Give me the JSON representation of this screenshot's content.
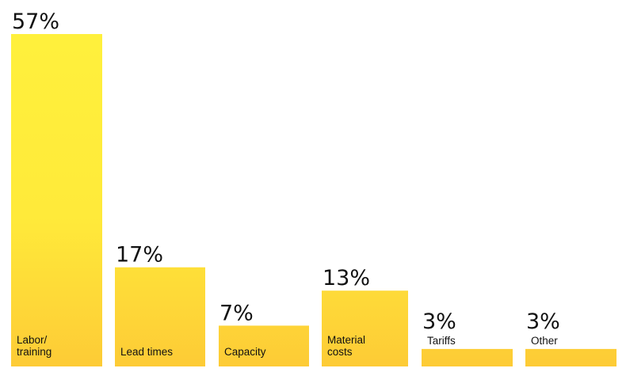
{
  "chart_data": {
    "type": "bar",
    "categories": [
      "Labor/ training",
      "Lead times",
      "Capacity",
      "Material costs",
      "Tariffs",
      "Other"
    ],
    "category_lines": [
      [
        "Labor/",
        "training"
      ],
      [
        "Lead times"
      ],
      [
        "Capacity"
      ],
      [
        "Material",
        "costs"
      ],
      [
        "Tariffs"
      ],
      [
        "Other"
      ]
    ],
    "values": [
      57,
      17,
      7,
      13,
      3,
      3
    ],
    "value_labels": [
      "57%",
      "17%",
      "7%",
      "13%",
      "3%",
      "3%"
    ],
    "ylim": [
      0,
      57
    ],
    "grid": false,
    "colors": {
      "bar_top": "#FFF03C",
      "bar_bottom": "#FDCB36",
      "text": "#111111"
    }
  }
}
